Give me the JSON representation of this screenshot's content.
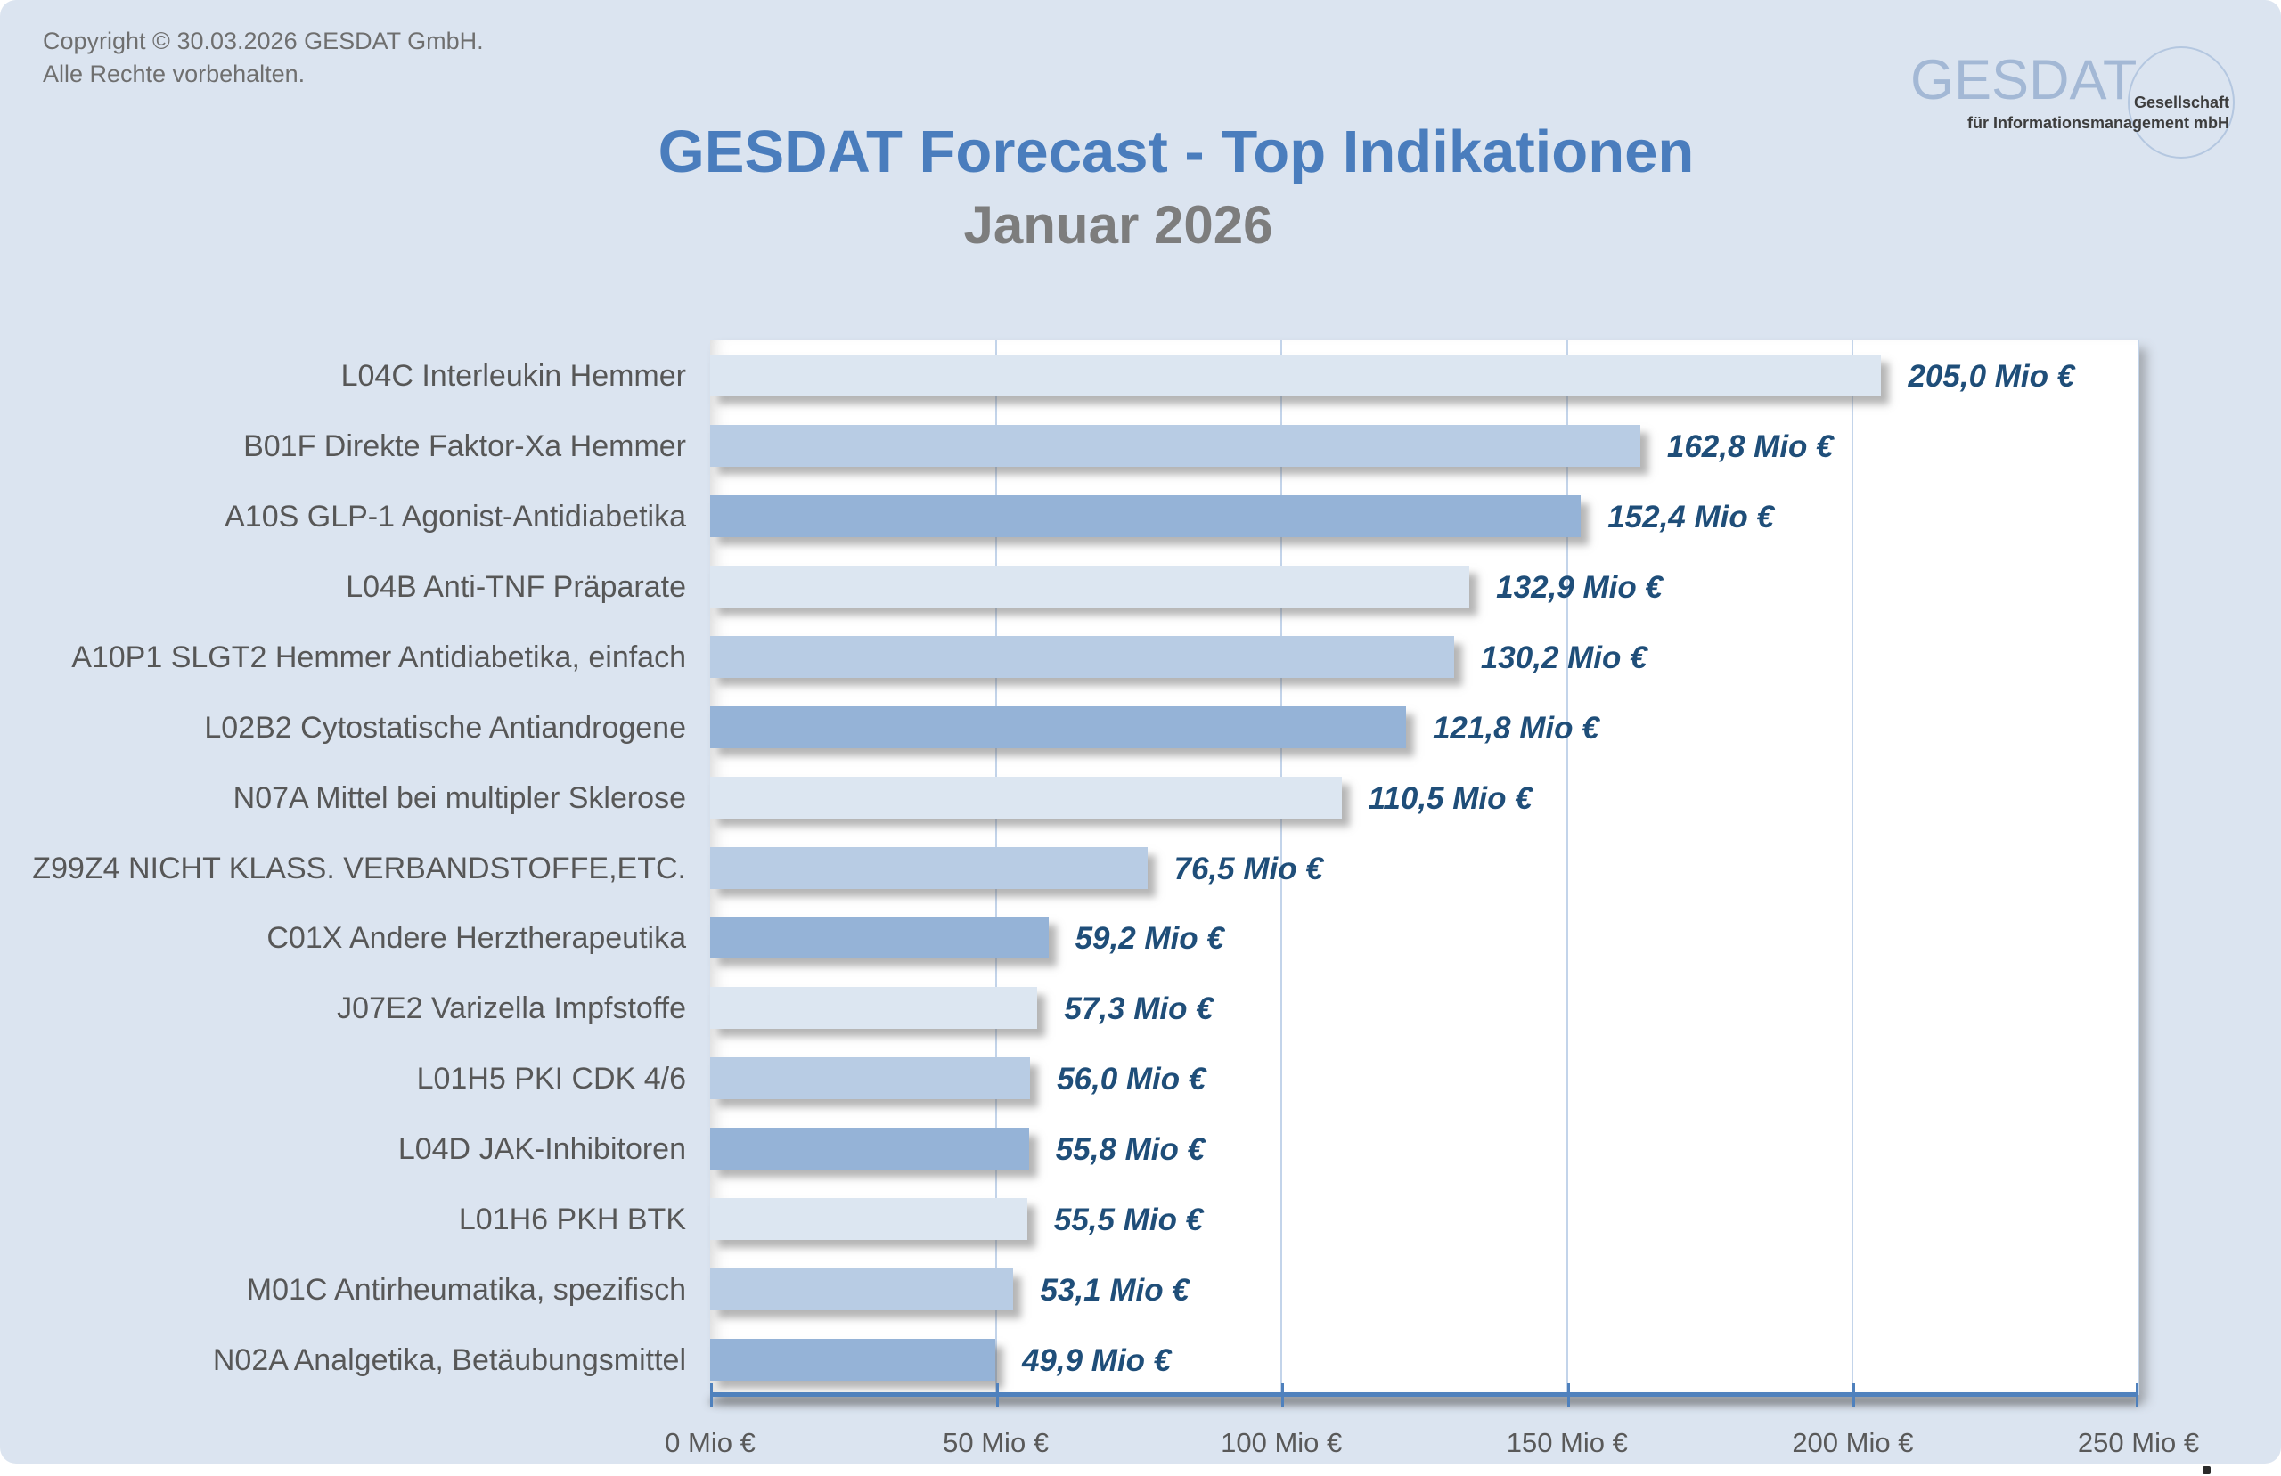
{
  "page": {
    "copyright_line1": "Copyright © 30.03.2026 GESDAT GmbH.",
    "copyright_line2": "Alle Rechte vorbehalten.",
    "title": "GESDAT Forecast - Top Indikationen",
    "subtitle": "Januar 2026",
    "background_color": "#dbe4f0",
    "title_color": "#4a7dbd",
    "subtitle_color": "#7d7d7d"
  },
  "logo": {
    "wordmark": "GESDAT",
    "tagline_line1": "Gesellschaft",
    "tagline_line2": "für Informationsmanagement mbH",
    "wordmark_color": "#a3b8d5"
  },
  "chart_data": {
    "type": "bar",
    "orientation": "horizontal",
    "title": "GESDAT Forecast - Top Indikationen",
    "subtitle": "Januar 2026",
    "categories": [
      "L04C Interleukin Hemmer",
      "B01F Direkte Faktor-Xa Hemmer",
      "A10S GLP-1 Agonist-Antidiabetika",
      "L04B Anti-TNF Präparate",
      "A10P1 SLGT2 Hemmer Antidiabetika, einfach",
      "L02B2 Cytostatische Antiandrogene",
      "N07A Mittel bei multipler Sklerose",
      "Z99Z4 NICHT KLASS. VERBANDSTOFFE,ETC.",
      "C01X Andere Herztherapeutika",
      "J07E2 Varizella Impfstoffe",
      "L01H5 PKI CDK 4/6",
      "L04D JAK-Inhibitoren",
      "L01H6 PKH BTK",
      "M01C Antirheumatika, spezifisch",
      "N02A Analgetika, Betäubungsmittel"
    ],
    "values": [
      205.0,
      162.8,
      152.4,
      132.9,
      130.2,
      121.8,
      110.5,
      76.5,
      59.2,
      57.3,
      56.0,
      55.8,
      55.5,
      53.1,
      49.9
    ],
    "value_labels": [
      "205,0 Mio €",
      "162,8 Mio €",
      "152,4 Mio €",
      "132,9 Mio €",
      "130,2 Mio €",
      "121,8 Mio €",
      "110,5 Mio €",
      "76,5 Mio €",
      "59,2 Mio €",
      "57,3 Mio €",
      "56,0 Mio €",
      "55,8 Mio €",
      "55,5 Mio €",
      "53,1 Mio €",
      "49,9 Mio €"
    ],
    "x_axis": {
      "range": [
        0,
        250
      ],
      "ticks": [
        0,
        50,
        100,
        150,
        200,
        250
      ],
      "tick_labels": [
        "0 Mio €",
        "50 Mio €",
        "100 Mio €",
        "150 Mio €",
        "200 Mio €",
        "250 Mio €"
      ]
    },
    "grid": true,
    "legend": false,
    "bar_colors_cycle": [
      "#dce6f1",
      "#b8cce4",
      "#95b3d7"
    ],
    "value_label_color": "#1f4e79",
    "gridline_color": "#c3d4ea",
    "axis_line_color": "#4f81bd"
  }
}
